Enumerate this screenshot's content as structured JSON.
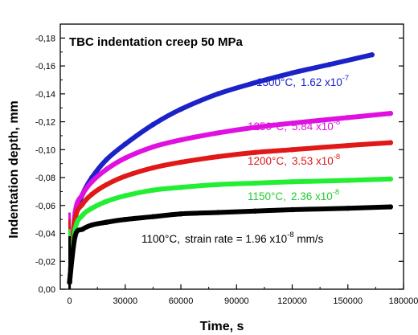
{
  "chart_data": {
    "type": "line",
    "title": "TBC indentation creep 50 MPa",
    "xlabel": "Time, s",
    "ylabel": "Indentation depth, mm",
    "xlim": [
      -5000,
      180000
    ],
    "ylim": [
      0.0,
      -0.19
    ],
    "xticks": [
      0,
      30000,
      60000,
      90000,
      120000,
      150000,
      180000
    ],
    "xtick_labels": [
      "0",
      "30000",
      "60000",
      "90000",
      "120000",
      "150000",
      "180000"
    ],
    "yticks": [
      0.0,
      -0.02,
      -0.04,
      -0.06,
      -0.08,
      -0.1,
      -0.12,
      -0.14,
      -0.16,
      -0.18
    ],
    "ytick_labels": [
      "0,00",
      "-0,02",
      "-0,04",
      "-0,06",
      "-0,08",
      "-0,10",
      "-0,12",
      "-0,14",
      "-0,16",
      "-0,18"
    ],
    "grid": false,
    "series": [
      {
        "temperature": "1300",
        "rate_mantissa": "1.62 x10",
        "rate_exponent": "-7",
        "color": "#1b22c8",
        "x": [
          0,
          3000,
          7000,
          12000,
          20000,
          30000,
          45000,
          60000,
          80000,
          100000,
          120000,
          140000,
          163000
        ],
        "y": [
          -0.005,
          -0.05,
          -0.068,
          -0.08,
          -0.093,
          -0.104,
          -0.118,
          -0.129,
          -0.14,
          -0.148,
          -0.155,
          -0.161,
          -0.168
        ]
      },
      {
        "temperature": "1250",
        "rate_mantissa": "5.84 x10",
        "rate_exponent": "-8",
        "color": "#e010e0",
        "x": [
          0,
          3000,
          7000,
          12000,
          20000,
          30000,
          45000,
          60000,
          80000,
          100000,
          120000,
          150000,
          173000
        ],
        "y": [
          -0.005,
          -0.055,
          -0.068,
          -0.077,
          -0.086,
          -0.094,
          -0.102,
          -0.107,
          -0.112,
          -0.116,
          -0.119,
          -0.123,
          -0.126
        ]
      },
      {
        "temperature": "1200",
        "rate_mantissa": "3.53 x10",
        "rate_exponent": "-8",
        "color": "#e01818",
        "x": [
          0,
          3000,
          7000,
          12000,
          20000,
          30000,
          45000,
          60000,
          80000,
          100000,
          120000,
          150000,
          173000
        ],
        "y": [
          -0.005,
          -0.05,
          -0.061,
          -0.068,
          -0.075,
          -0.081,
          -0.087,
          -0.091,
          -0.095,
          -0.098,
          -0.1,
          -0.103,
          -0.105
        ]
      },
      {
        "temperature": "1150",
        "rate_mantissa": "2.36 x10",
        "rate_exponent": "-8",
        "color": "#22ee33",
        "x": [
          0,
          3000,
          7000,
          12000,
          20000,
          30000,
          45000,
          60000,
          80000,
          100000,
          120000,
          150000,
          173000
        ],
        "y": [
          -0.005,
          -0.043,
          -0.053,
          -0.058,
          -0.063,
          -0.067,
          -0.071,
          -0.073,
          -0.075,
          -0.076,
          -0.077,
          -0.078,
          -0.079
        ]
      },
      {
        "temperature": "1100",
        "rate_mantissa": "1.96 x10",
        "rate_exponent": "-8",
        "color": "#000000",
        "x": [
          0,
          3000,
          7000,
          12000,
          20000,
          30000,
          45000,
          60000,
          80000,
          100000,
          120000,
          150000,
          173000
        ],
        "y": [
          -0.005,
          -0.038,
          -0.043,
          -0.046,
          -0.048,
          -0.05,
          -0.052,
          -0.054,
          -0.055,
          -0.056,
          -0.057,
          -0.058,
          -0.059
        ]
      }
    ],
    "annotations": {
      "degree_unit": "°C,",
      "strain_rate_prefix": "strain rate = ",
      "strain_rate_units": " mm/s"
    }
  }
}
